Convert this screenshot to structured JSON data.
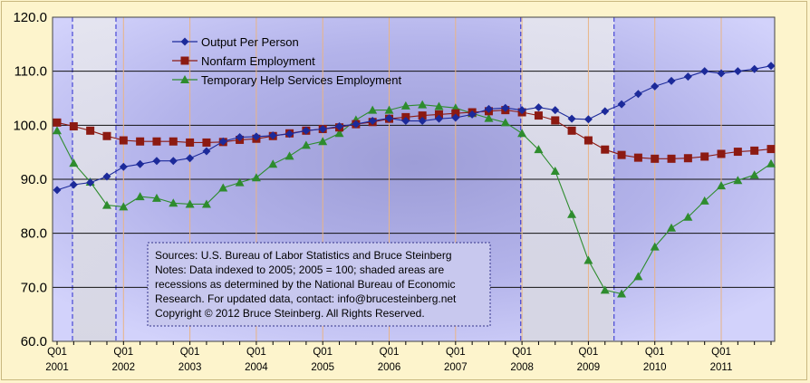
{
  "chart_data": {
    "type": "line",
    "title": "",
    "xlabel": "",
    "ylabel": "",
    "ylim": [
      60,
      120
    ],
    "yticks": [
      "60.0",
      "70.0",
      "80.0",
      "90.0",
      "100.0",
      "110.0",
      "120.0"
    ],
    "ytick_values": [
      60,
      70,
      80,
      90,
      100,
      110,
      120
    ],
    "x_tick_labels": [
      {
        "q": "Q01",
        "year": "2001"
      },
      {
        "q": "Q01",
        "year": "2002"
      },
      {
        "q": "Q01",
        "year": "2003"
      },
      {
        "q": "Q01",
        "year": "2004"
      },
      {
        "q": "Q01",
        "year": "2005"
      },
      {
        "q": "Q01",
        "year": "2006"
      },
      {
        "q": "Q01",
        "year": "2007"
      },
      {
        "q": "Q01",
        "year": "2008"
      },
      {
        "q": "Q01",
        "year": "2009"
      },
      {
        "q": "Q01",
        "year": "2010"
      },
      {
        "q": "Q01",
        "year": "2011"
      }
    ],
    "x_range": [
      "2001 Q1",
      "2011 Q4"
    ],
    "grid": true,
    "legend_position": "top-left",
    "recessions": [
      {
        "start": "2001 Q1",
        "end": "2001 Q4"
      },
      {
        "start": "2007 Q4",
        "end": "2009 Q2"
      }
    ],
    "series": [
      {
        "name": "Output Per Person",
        "marker": "diamond",
        "color": "#1c2a9a",
        "values": [
          88.0,
          89.0,
          89.4,
          90.5,
          92.3,
          92.8,
          93.4,
          93.4,
          93.9,
          95.2,
          97.0,
          97.8,
          97.9,
          98.1,
          98.4,
          99.0,
          99.3,
          99.8,
          100.2,
          100.8,
          101.3,
          100.8,
          100.8,
          101.2,
          101.4,
          102.0,
          103.0,
          103.2,
          102.8,
          103.3,
          102.8,
          101.2,
          101.1,
          102.6,
          103.9,
          105.8,
          107.2,
          108.2,
          109.0,
          110.0,
          109.6,
          110.0,
          110.4,
          111.0
        ]
      },
      {
        "name": "Nonfarm Employment",
        "marker": "square",
        "color": "#8c1a12",
        "values": [
          100.5,
          99.8,
          99.0,
          98.0,
          97.2,
          97.0,
          97.0,
          97.0,
          96.8,
          96.8,
          96.9,
          97.3,
          97.5,
          98.0,
          98.5,
          99.0,
          99.3,
          99.6,
          100.2,
          100.6,
          101.2,
          101.5,
          101.8,
          102.0,
          102.2,
          102.4,
          102.6,
          102.8,
          102.4,
          101.8,
          100.9,
          99.0,
          97.2,
          95.5,
          94.5,
          94.0,
          93.8,
          93.8,
          93.9,
          94.2,
          94.7,
          95.1,
          95.3,
          95.6
        ]
      },
      {
        "name": "Temporary Help Services Employment",
        "marker": "triangle",
        "color": "#2e8c2e",
        "values": [
          99.0,
          93.0,
          89.5,
          85.2,
          84.9,
          86.8,
          86.5,
          85.6,
          85.4,
          85.4,
          88.4,
          89.4,
          90.3,
          92.8,
          94.3,
          96.3,
          97.0,
          98.5,
          101.0,
          102.8,
          102.8,
          103.6,
          103.8,
          103.5,
          103.2,
          102.2,
          101.3,
          100.5,
          98.5,
          95.5,
          91.5,
          83.5,
          75.0,
          69.5,
          68.8,
          72.0,
          77.5,
          81.0,
          83.0,
          86.0,
          88.8,
          89.8,
          90.8,
          92.9
        ]
      }
    ],
    "note_lines": [
      "Sources: U.S. Bureau of Labor Statistics and Bruce Steinberg",
      "Notes: Data indexed to 2005; 2005 = 100; shaded areas are",
      "recessions as determined by the National Bureau of Economic",
      "Research. For updated data, contact: info@brucesteinberg.net",
      "Copyright © 2012 Bruce Steinberg. All Rights Reserved."
    ]
  }
}
